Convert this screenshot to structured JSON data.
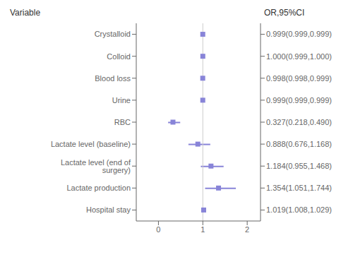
{
  "chart_data": {
    "type": "forest",
    "categories": [
      "Crystalloid",
      "Colloid",
      "Blood loss",
      "Urine",
      "RBC",
      "Lactate level (baseline)",
      "Lactate level (end of surgery)",
      "Lactate production",
      "Hospital stay"
    ],
    "values": [
      0.999,
      1.0,
      0.998,
      0.999,
      0.327,
      0.888,
      1.184,
      1.354,
      1.019
    ],
    "ci_low": [
      0.999,
      0.999,
      0.998,
      0.999,
      0.218,
      0.676,
      0.955,
      1.051,
      1.008
    ],
    "ci_high": [
      0.999,
      1.0,
      0.999,
      0.999,
      0.49,
      1.168,
      1.468,
      1.744,
      1.029
    ],
    "value_labels": [
      "0.999(0.999,0.999)",
      "1.000(0.999,1.000)",
      "0.998(0.998,0.999)",
      "0.999(0.999,0.999)",
      "0.327(0.218,0.490)",
      "0.888(0.676,1.168)",
      "1.184(0.955,1.468)",
      "1.354(1.051,1.744)",
      "1.019(1.008,1.029)"
    ],
    "xlim": [
      -0.5,
      2.3
    ],
    "xticks": [
      0,
      1,
      2
    ],
    "reference_x": 1,
    "annotations": [
      "Variable",
      "OR,95%CI"
    ],
    "grid": false,
    "data_labels": true
  }
}
